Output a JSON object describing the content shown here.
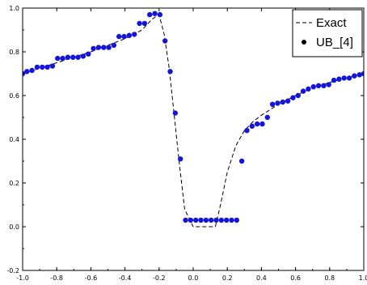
{
  "chart_data": {
    "type": "line",
    "title": "",
    "xlabel": "",
    "ylabel": "",
    "xlim": [
      -1.0,
      1.0
    ],
    "ylim": [
      -0.2,
      1.0
    ],
    "xticks": [
      -1.0,
      -0.8,
      -0.6,
      -0.4,
      -0.2,
      0.0,
      0.2,
      0.4,
      0.6,
      0.8,
      1.0
    ],
    "xtick_labels": [
      "-1.0",
      "-0.8",
      "-0.6",
      "-0.4",
      "-0.2",
      "0.0",
      "0.2",
      "0.4",
      "0.6",
      "0.8",
      "1.0"
    ],
    "yticks": [
      -0.2,
      0.0,
      0.2,
      0.4,
      0.6,
      0.8,
      1.0
    ],
    "ytick_labels": [
      "-0.2",
      "0.0",
      "0.2",
      "0.4",
      "0.6",
      "0.8",
      "1.0"
    ],
    "grid": false,
    "legend_position": "top-right",
    "series": [
      {
        "name": "Exact",
        "style": "dashed-line",
        "color": "#000000",
        "x": [
          -1.0,
          -0.9,
          -0.8,
          -0.7,
          -0.6,
          -0.5,
          -0.4,
          -0.3,
          -0.24,
          -0.2,
          -0.17,
          -0.14,
          -0.11,
          -0.08,
          -0.05,
          0.0,
          0.1,
          0.13,
          0.16,
          0.2,
          0.25,
          0.3,
          0.35,
          0.4,
          0.5,
          0.6,
          0.7,
          0.8,
          0.9,
          1.0
        ],
        "y": [
          0.7,
          0.725,
          0.75,
          0.775,
          0.8,
          0.83,
          0.86,
          0.9,
          0.95,
          0.97,
          0.88,
          0.72,
          0.5,
          0.28,
          0.08,
          0.0,
          0.0,
          0.0,
          0.1,
          0.25,
          0.37,
          0.44,
          0.48,
          0.51,
          0.56,
          0.6,
          0.635,
          0.66,
          0.68,
          0.7
        ]
      },
      {
        "name": "UB_[4]",
        "style": "markers",
        "color": "#1515d8",
        "x": [
          -1.0,
          -0.975,
          -0.945,
          -0.915,
          -0.885,
          -0.855,
          -0.825,
          -0.795,
          -0.765,
          -0.735,
          -0.705,
          -0.675,
          -0.645,
          -0.615,
          -0.585,
          -0.555,
          -0.525,
          -0.495,
          -0.465,
          -0.435,
          -0.405,
          -0.375,
          -0.345,
          -0.315,
          -0.285,
          -0.255,
          -0.225,
          -0.195,
          -0.165,
          -0.135,
          -0.105,
          -0.075,
          -0.045,
          -0.015,
          0.015,
          0.045,
          0.075,
          0.105,
          0.135,
          0.165,
          0.195,
          0.225,
          0.255,
          0.285,
          0.315,
          0.345,
          0.375,
          0.405,
          0.435,
          0.465,
          0.495,
          0.525,
          0.555,
          0.585,
          0.615,
          0.645,
          0.675,
          0.705,
          0.735,
          0.765,
          0.795,
          0.825,
          0.855,
          0.885,
          0.915,
          0.945,
          0.975,
          1.0
        ],
        "y": [
          0.7,
          0.71,
          0.715,
          0.73,
          0.73,
          0.73,
          0.735,
          0.77,
          0.77,
          0.775,
          0.775,
          0.775,
          0.78,
          0.79,
          0.815,
          0.82,
          0.82,
          0.82,
          0.83,
          0.87,
          0.87,
          0.875,
          0.88,
          0.93,
          0.93,
          0.97,
          0.975,
          0.97,
          0.85,
          0.71,
          0.52,
          0.31,
          0.03,
          0.03,
          0.03,
          0.03,
          0.03,
          0.03,
          0.03,
          0.03,
          0.03,
          0.03,
          0.03,
          0.3,
          0.44,
          0.46,
          0.47,
          0.47,
          0.5,
          0.56,
          0.565,
          0.57,
          0.575,
          0.59,
          0.6,
          0.62,
          0.63,
          0.64,
          0.645,
          0.645,
          0.65,
          0.67,
          0.675,
          0.68,
          0.68,
          0.69,
          0.695,
          0.7
        ]
      }
    ]
  }
}
